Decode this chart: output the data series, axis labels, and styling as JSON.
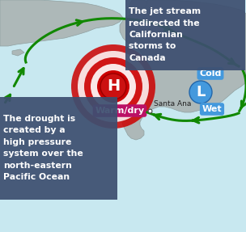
{
  "bg_color": "#c8e8f0",
  "land_color": "#adb8b8",
  "land_edge": "#8fa0a0",
  "H_ring_color": "#cc0000",
  "H_fill": "#cc1111",
  "H_label": "H",
  "warm_dry_bg": "#bb1166",
  "warm_dry_text": "Warm/dry",
  "L_fill": "#4499dd",
  "L_label": "L",
  "cold_bg": "#4499dd",
  "cold_text": "Cold",
  "wet_bg": "#4499dd",
  "wet_text": "Wet",
  "arrow_color": "#118800",
  "box1_bg": "#3d4f70",
  "box1_text": "The jet stream\nredirected the\nCalifornian\nstorms to\nCanada",
  "box2_bg": "#3d4f70",
  "box2_text": "The drought is\ncreated by a\nhigh pressure\nsystem over the\nnorth-eastern\nPacific Ocean",
  "santa_ana": "Santa Ana",
  "figsize": [
    3.04,
    2.87
  ],
  "dpi": 100
}
